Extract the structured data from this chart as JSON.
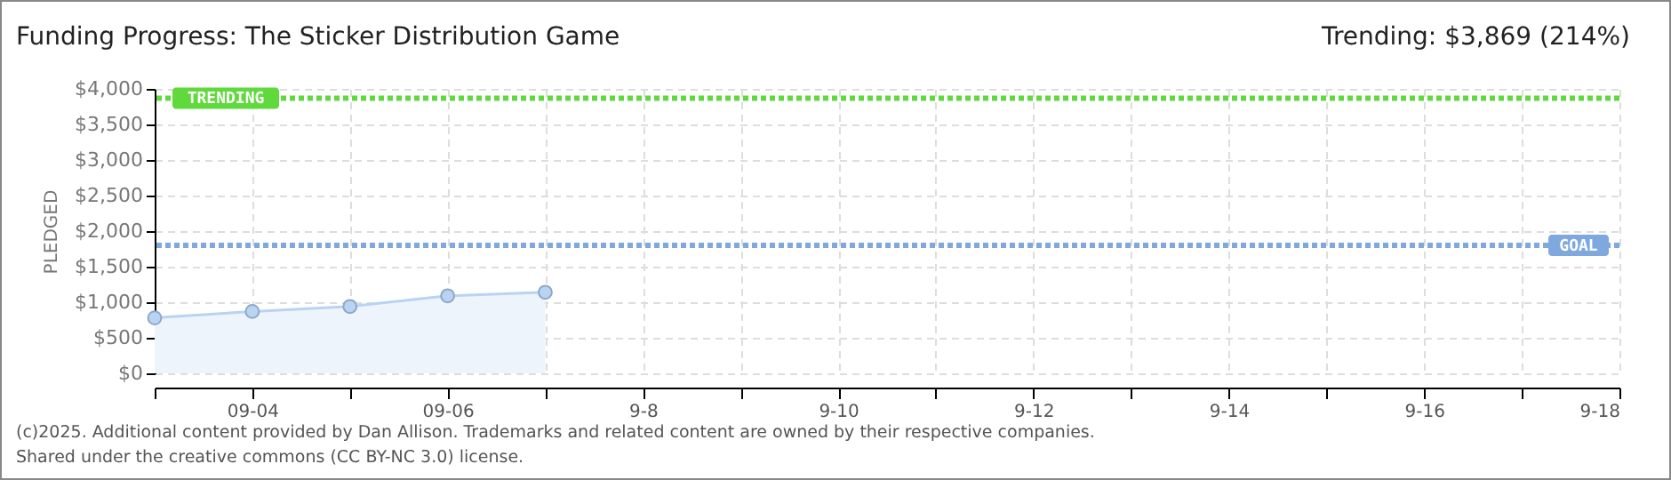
{
  "chart_data": {
    "type": "area",
    "title": "Funding Progress: The Sticker Distribution Game",
    "subtitle": "Trending: $3,869 (214%)",
    "ylabel": "PLEDGED",
    "x": [
      "--09-03",
      "--09-04",
      "--09-05",
      "--09-06",
      "--09-07"
    ],
    "series": [
      {
        "color": "#b9d3f3",
        "values": [
          780,
          870,
          940,
          1090,
          1140
        ]
      }
    ],
    "xlim": [
      "--09-03",
      "--09-18"
    ],
    "xticks": [
      {
        "value": "--09-03",
        "label": null
      },
      {
        "value": "--09-04",
        "label": "09-04"
      },
      {
        "value": "--09-05",
        "label": null
      },
      {
        "value": "--09-06",
        "label": "09-06"
      },
      {
        "value": "--09-07",
        "label": null
      },
      {
        "value": "--09-08",
        "label": "9-8"
      },
      {
        "value": "--09-09",
        "label": null
      },
      {
        "value": "--09-10",
        "label": "9-10"
      },
      {
        "value": "--09-11",
        "label": null
      },
      {
        "value": "--09-12",
        "label": "9-12"
      },
      {
        "value": "--09-13",
        "label": null
      },
      {
        "value": "--09-14",
        "label": "9-14"
      },
      {
        "value": "--09-15",
        "label": null
      },
      {
        "value": "--09-16",
        "label": "9-16"
      },
      {
        "value": "--09-17",
        "label": null
      },
      {
        "value": "--09-18",
        "label": "9-18"
      }
    ],
    "ylim": [
      0,
      4000
    ],
    "yticks": [
      {
        "value": 0,
        "label": "$0"
      },
      {
        "value": 500,
        "label": "$500"
      },
      {
        "value": 1000,
        "label": "$1,000"
      },
      {
        "value": 1500,
        "label": "$1,500"
      },
      {
        "value": 2000,
        "label": "$2,000"
      },
      {
        "value": 2500,
        "label": "$2,500"
      },
      {
        "value": 3000,
        "label": "$3,000"
      },
      {
        "value": 3500,
        "label": "$3,500"
      },
      {
        "value": 4000,
        "label": "$4,000"
      }
    ],
    "ref_lines": [
      {
        "axis": "y",
        "value": 3869,
        "label": "TRENDING",
        "color": "#5fd93c",
        "line_style": "dotted"
      },
      {
        "axis": "y",
        "value": 1800,
        "label": "GOAL",
        "color": "#7fa9de",
        "line_style": "dotted"
      }
    ],
    "grid": true,
    "marker": "circle",
    "annotations": [
      "(c)2025. Additional content provided by Dan Allison. Trademarks and related content are owned by their respective companies.",
      "Shared under the creative commons (CC BY-NC 3.0) license."
    ]
  }
}
